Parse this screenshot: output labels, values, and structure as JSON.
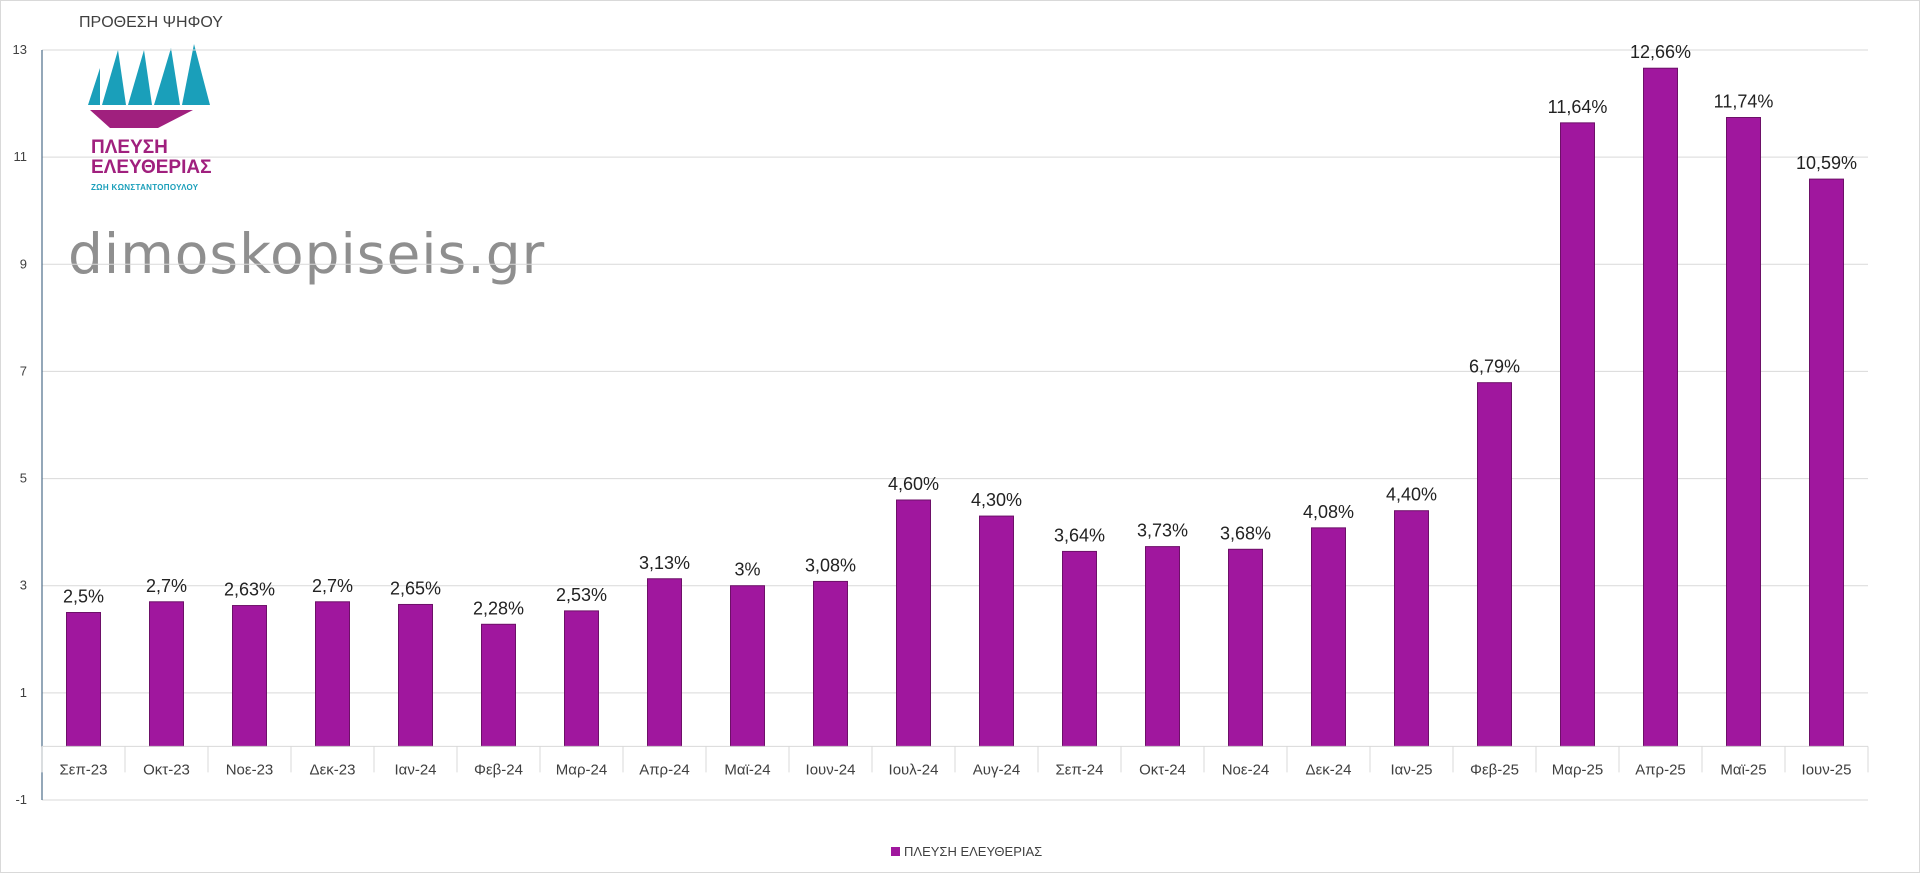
{
  "header": {
    "title": "ΠΡΟΘΕΣΗ ΨΗΦΟΥ"
  },
  "logo": {
    "line1": "ΠΛΕΥΣΗ",
    "line2": "ΕΛΕΥΘΕΡΙΑΣ",
    "subtitle": "ΖΩΗ ΚΩΝΣΤΑΝΤΟΠΟΥΛΟΥ",
    "colors": {
      "sails": "#1a9fba",
      "hull": "#a0207e"
    }
  },
  "watermark": "dimoskopiseis.gr",
  "chart_data": {
    "type": "bar",
    "categories": [
      "Σεπ-23",
      "Οκτ-23",
      "Νοε-23",
      "Δεκ-23",
      "Ιαν-24",
      "Φεβ-24",
      "Μαρ-24",
      "Απρ-24",
      "Μαϊ-24",
      "Ιουν-24",
      "Ιουλ-24",
      "Αυγ-24",
      "Σεπ-24",
      "Οκτ-24",
      "Νοε-24",
      "Δεκ-24",
      "Ιαν-25",
      "Φεβ-25",
      "Μαρ-25",
      "Απρ-25",
      "Μαϊ-25",
      "Ιουν-25"
    ],
    "series": [
      {
        "name": "ΠΛΕΥΣΗ ΕΛΕΥΘΕΡΙΑΣ",
        "color": "#a0179e",
        "values": [
          2.5,
          2.7,
          2.63,
          2.7,
          2.65,
          2.28,
          2.53,
          3.13,
          3.0,
          3.08,
          4.6,
          4.3,
          3.64,
          3.73,
          3.68,
          4.08,
          4.4,
          6.79,
          11.64,
          12.66,
          11.74,
          10.59
        ],
        "labels": [
          "2,5%",
          "2,7%",
          "2,63%",
          "2,7%",
          "2,65%",
          "2,28%",
          "2,53%",
          "3,13%",
          "3%",
          "3,08%",
          "4,60%",
          "4,30%",
          "3,64%",
          "3,73%",
          "3,68%",
          "4,08%",
          "4,40%",
          "6,79%",
          "11,64%",
          "12,66%",
          "11,74%",
          "10,59%"
        ]
      }
    ],
    "yticks": [
      "13",
      "11",
      "9",
      "7",
      "5",
      "3",
      "1",
      "-1"
    ],
    "ylim": [
      -1,
      13
    ],
    "grid": true,
    "legend_position": "bottom"
  }
}
